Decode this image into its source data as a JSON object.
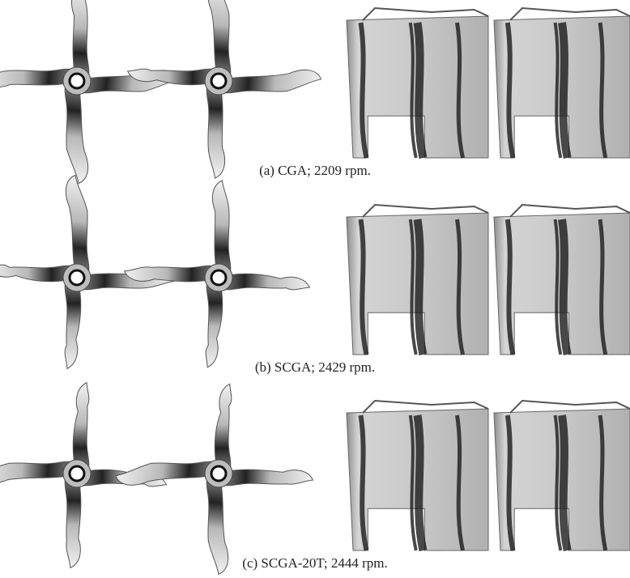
{
  "panels": [
    {
      "caption": "(a) CGA; 2209 rpm."
    },
    {
      "caption": "(b) SCGA; 2429 rpm."
    },
    {
      "caption": "(c) SCGA-20T; 2444 rpm."
    }
  ]
}
